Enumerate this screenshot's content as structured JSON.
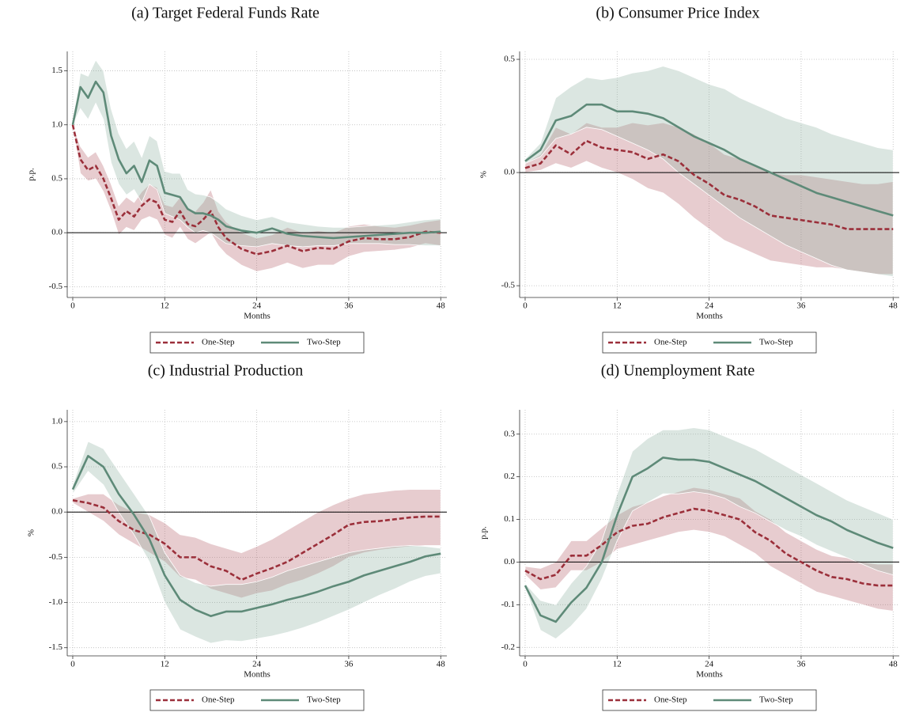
{
  "chart_data": [
    {
      "type": "line",
      "title": "(a) Target Federal Funds Rate",
      "xlabel": "Months",
      "ylabel": "p.p.",
      "x": [
        0,
        1,
        2,
        3,
        4,
        5,
        6,
        7,
        8,
        9,
        10,
        11,
        12,
        13,
        14,
        15,
        16,
        17,
        18,
        19,
        20,
        22,
        24,
        26,
        28,
        30,
        32,
        34,
        36,
        38,
        40,
        42,
        44,
        46,
        48
      ],
      "xlim": [
        -0.72,
        48.8
      ],
      "xticks": [
        0,
        12,
        24,
        36,
        48
      ],
      "ylim": [
        -0.6,
        1.68
      ],
      "yticks": [
        -0.5,
        {
          "value": 0,
          "label": "0.0"
        },
        0.5,
        {
          "value": 1,
          "label": "1.0"
        },
        1.5
      ],
      "grid": true,
      "hline": 0,
      "series": [
        {
          "name": "One-Step",
          "color": "#9b2f3a",
          "band_color": "#b5606b",
          "line_style": "dashed",
          "values": [
            1.0,
            0.68,
            0.58,
            0.62,
            0.5,
            0.32,
            0.12,
            0.2,
            0.15,
            0.25,
            0.31,
            0.28,
            0.12,
            0.1,
            0.2,
            0.08,
            0.06,
            0.12,
            0.2,
            0.05,
            -0.05,
            -0.15,
            -0.2,
            -0.17,
            -0.12,
            -0.17,
            -0.14,
            -0.15,
            -0.08,
            -0.05,
            -0.06,
            -0.06,
            -0.04,
            0.01,
            0.0
          ],
          "lower": [
            1.0,
            0.55,
            0.48,
            0.5,
            0.38,
            0.2,
            -0.02,
            0.05,
            0.02,
            0.12,
            0.15,
            0.12,
            -0.02,
            -0.05,
            0.05,
            -0.06,
            -0.1,
            -0.05,
            0.0,
            -0.12,
            -0.2,
            -0.3,
            -0.36,
            -0.33,
            -0.28,
            -0.33,
            -0.3,
            -0.3,
            -0.22,
            -0.18,
            -0.17,
            -0.16,
            -0.14,
            -0.1,
            -0.12
          ],
          "upper": [
            1.0,
            0.8,
            0.7,
            0.75,
            0.62,
            0.45,
            0.25,
            0.33,
            0.28,
            0.38,
            0.45,
            0.42,
            0.26,
            0.24,
            0.33,
            0.22,
            0.2,
            0.28,
            0.4,
            0.2,
            0.1,
            0.0,
            -0.05,
            -0.02,
            0.05,
            0.0,
            0.02,
            0.0,
            0.06,
            0.08,
            0.06,
            0.05,
            0.07,
            0.1,
            0.12
          ]
        },
        {
          "name": "Two-Step",
          "color": "#5e8a78",
          "band_color": "#8fb0a3",
          "line_style": "solid",
          "values": [
            1.0,
            1.35,
            1.25,
            1.4,
            1.3,
            0.9,
            0.68,
            0.55,
            0.62,
            0.47,
            0.67,
            0.62,
            0.37,
            0.35,
            0.33,
            0.22,
            0.18,
            0.18,
            0.16,
            0.12,
            0.06,
            0.02,
            0.0,
            0.04,
            -0.01,
            -0.03,
            -0.04,
            -0.05,
            -0.04,
            -0.03,
            -0.02,
            -0.01,
            0.0,
            0.0,
            0.01
          ],
          "lower": [
            1.0,
            1.15,
            1.05,
            1.2,
            1.05,
            0.65,
            0.45,
            0.35,
            0.4,
            0.28,
            0.45,
            0.4,
            0.18,
            0.15,
            0.12,
            0.05,
            0.0,
            0.02,
            0.0,
            -0.05,
            -0.1,
            -0.12,
            -0.13,
            -0.1,
            -0.12,
            -0.13,
            -0.12,
            -0.12,
            -0.1,
            -0.1,
            -0.1,
            -0.11,
            -0.11,
            -0.12,
            -0.12
          ],
          "upper": [
            1.0,
            1.48,
            1.45,
            1.6,
            1.5,
            1.15,
            0.92,
            0.78,
            0.85,
            0.7,
            0.9,
            0.85,
            0.57,
            0.55,
            0.55,
            0.4,
            0.36,
            0.35,
            0.33,
            0.28,
            0.22,
            0.16,
            0.12,
            0.15,
            0.1,
            0.08,
            0.06,
            0.05,
            0.05,
            0.06,
            0.07,
            0.08,
            0.1,
            0.12,
            0.13
          ]
        }
      ]
    },
    {
      "type": "line",
      "title": "(b) Consumer Price Index",
      "xlabel": "Months",
      "ylabel": "%",
      "x": [
        0,
        2,
        4,
        6,
        8,
        10,
        12,
        14,
        16,
        18,
        20,
        22,
        24,
        26,
        28,
        30,
        32,
        34,
        36,
        38,
        40,
        42,
        44,
        46,
        48
      ],
      "xlim": [
        -0.72,
        48.8
      ],
      "xticks": [
        0,
        12,
        24,
        36,
        48
      ],
      "ylim": [
        -0.552,
        0.535
      ],
      "yticks": [
        -0.5,
        {
          "value": 0,
          "label": "0.0"
        },
        0.5
      ],
      "grid": true,
      "hline": 0,
      "series": [
        {
          "name": "One-Step",
          "color": "#9b2f3a",
          "band_color": "#b5606b",
          "line_style": "dashed",
          "values": [
            0.02,
            0.04,
            0.12,
            0.08,
            0.14,
            0.11,
            0.1,
            0.09,
            0.06,
            0.08,
            0.05,
            -0.01,
            -0.05,
            -0.1,
            -0.12,
            -0.15,
            -0.19,
            -0.2,
            -0.21,
            -0.22,
            -0.23,
            -0.25,
            -0.25,
            -0.25,
            -0.25
          ],
          "lower": [
            0.0,
            0.01,
            0.04,
            0.02,
            0.05,
            0.02,
            0.0,
            -0.03,
            -0.07,
            -0.09,
            -0.14,
            -0.2,
            -0.25,
            -0.3,
            -0.33,
            -0.36,
            -0.39,
            -0.4,
            -0.41,
            -0.42,
            -0.42,
            -0.43,
            -0.44,
            -0.45,
            -0.45
          ],
          "upper": [
            0.04,
            0.08,
            0.2,
            0.17,
            0.22,
            0.2,
            0.2,
            0.22,
            0.21,
            0.22,
            0.2,
            0.17,
            0.13,
            0.08,
            0.06,
            0.03,
            0.0,
            -0.01,
            -0.01,
            -0.02,
            -0.03,
            -0.04,
            -0.05,
            -0.05,
            -0.04
          ]
        },
        {
          "name": "Two-Step",
          "color": "#5e8a78",
          "band_color": "#8fb0a3",
          "line_style": "solid",
          "values": [
            0.05,
            0.1,
            0.23,
            0.25,
            0.3,
            0.3,
            0.27,
            0.27,
            0.26,
            0.24,
            0.2,
            0.16,
            0.13,
            0.1,
            0.06,
            0.03,
            0.0,
            -0.03,
            -0.06,
            -0.09,
            -0.11,
            -0.13,
            -0.15,
            -0.17,
            -0.19
          ],
          "lower": [
            0.04,
            0.07,
            0.15,
            0.17,
            0.2,
            0.19,
            0.16,
            0.13,
            0.1,
            0.06,
            0.0,
            -0.05,
            -0.1,
            -0.15,
            -0.2,
            -0.24,
            -0.28,
            -0.32,
            -0.35,
            -0.38,
            -0.41,
            -0.43,
            -0.44,
            -0.45,
            -0.46
          ],
          "upper": [
            0.06,
            0.13,
            0.33,
            0.38,
            0.42,
            0.41,
            0.42,
            0.44,
            0.45,
            0.47,
            0.45,
            0.42,
            0.39,
            0.37,
            0.33,
            0.3,
            0.27,
            0.24,
            0.22,
            0.2,
            0.17,
            0.15,
            0.13,
            0.11,
            0.1
          ]
        }
      ]
    },
    {
      "type": "line",
      "title": "(c) Industrial Production",
      "xlabel": "Months",
      "ylabel": "%",
      "x": [
        0,
        2,
        4,
        6,
        8,
        10,
        12,
        14,
        16,
        18,
        20,
        22,
        24,
        26,
        28,
        30,
        32,
        34,
        36,
        38,
        40,
        42,
        44,
        46,
        48
      ],
      "xlim": [
        -0.72,
        48.8
      ],
      "xticks": [
        0,
        12,
        24,
        36,
        48
      ],
      "ylim": [
        -1.59,
        1.13
      ],
      "yticks": [
        -1.5,
        {
          "value": -1,
          "label": "-1.0"
        },
        -0.5,
        {
          "value": 0,
          "label": "0.0"
        },
        0.5,
        {
          "value": 1,
          "label": "1.0"
        }
      ],
      "grid": true,
      "hline": 0,
      "series": [
        {
          "name": "One-Step",
          "color": "#9b2f3a",
          "band_color": "#b5606b",
          "line_style": "dashed",
          "values": [
            0.13,
            0.1,
            0.05,
            -0.1,
            -0.2,
            -0.25,
            -0.35,
            -0.5,
            -0.5,
            -0.6,
            -0.65,
            -0.75,
            -0.68,
            -0.62,
            -0.55,
            -0.45,
            -0.35,
            -0.25,
            -0.14,
            -0.11,
            -0.1,
            -0.08,
            -0.06,
            -0.05,
            -0.05
          ],
          "lower": [
            0.1,
            0.0,
            -0.1,
            -0.25,
            -0.35,
            -0.45,
            -0.55,
            -0.72,
            -0.75,
            -0.85,
            -0.9,
            -0.95,
            -0.9,
            -0.87,
            -0.8,
            -0.75,
            -0.68,
            -0.6,
            -0.5,
            -0.45,
            -0.42,
            -0.4,
            -0.38,
            -0.37,
            -0.37
          ],
          "upper": [
            0.15,
            0.2,
            0.2,
            0.08,
            0.0,
            -0.03,
            -0.12,
            -0.25,
            -0.28,
            -0.35,
            -0.4,
            -0.45,
            -0.38,
            -0.3,
            -0.2,
            -0.1,
            0.0,
            0.08,
            0.15,
            0.2,
            0.22,
            0.24,
            0.25,
            0.25,
            0.25
          ]
        },
        {
          "name": "Two-Step",
          "color": "#5e8a78",
          "band_color": "#8fb0a3",
          "line_style": "solid",
          "values": [
            0.25,
            0.62,
            0.5,
            0.2,
            -0.03,
            -0.3,
            -0.7,
            -0.97,
            -1.08,
            -1.15,
            -1.1,
            -1.1,
            -1.06,
            -1.02,
            -0.97,
            -0.93,
            -0.88,
            -0.82,
            -0.77,
            -0.7,
            -0.65,
            -0.6,
            -0.55,
            -0.49,
            -0.46
          ],
          "lower": [
            0.2,
            0.45,
            0.3,
            0.0,
            -0.25,
            -0.55,
            -1.0,
            -1.3,
            -1.38,
            -1.45,
            -1.42,
            -1.43,
            -1.4,
            -1.37,
            -1.33,
            -1.28,
            -1.22,
            -1.15,
            -1.08,
            -1.0,
            -0.92,
            -0.85,
            -0.77,
            -0.71,
            -0.68
          ],
          "upper": [
            0.3,
            0.78,
            0.7,
            0.45,
            0.2,
            -0.05,
            -0.45,
            -0.7,
            -0.78,
            -0.82,
            -0.8,
            -0.8,
            -0.77,
            -0.72,
            -0.65,
            -0.6,
            -0.55,
            -0.5,
            -0.45,
            -0.42,
            -0.4,
            -0.38,
            -0.37,
            -0.38,
            -0.4
          ]
        }
      ]
    },
    {
      "type": "line",
      "title": "(d) Unemployment Rate",
      "xlabel": "Months",
      "ylabel": "p.p.",
      "x": [
        0,
        2,
        4,
        6,
        8,
        10,
        12,
        14,
        16,
        18,
        20,
        22,
        24,
        26,
        28,
        30,
        32,
        34,
        36,
        38,
        40,
        42,
        44,
        46,
        48
      ],
      "xlim": [
        -0.72,
        48.8
      ],
      "xticks": [
        0,
        12,
        24,
        36,
        48
      ],
      "ylim": [
        -0.22,
        0.357
      ],
      "yticks": [
        -0.2,
        -0.1,
        {
          "value": 0,
          "label": "0.0"
        },
        0.1,
        0.2,
        0.3
      ],
      "grid": true,
      "hline": 0,
      "series": [
        {
          "name": "One-Step",
          "color": "#9b2f3a",
          "band_color": "#b5606b",
          "line_style": "dashed",
          "values": [
            -0.02,
            -0.04,
            -0.03,
            0.015,
            0.015,
            0.04,
            0.07,
            0.085,
            0.09,
            0.105,
            0.115,
            0.125,
            0.12,
            0.11,
            0.1,
            0.07,
            0.05,
            0.02,
            0.0,
            -0.02,
            -0.035,
            -0.04,
            -0.05,
            -0.055,
            -0.055
          ],
          "lower": [
            -0.03,
            -0.065,
            -0.06,
            -0.02,
            -0.02,
            0.0,
            0.03,
            0.04,
            0.05,
            0.06,
            0.07,
            0.075,
            0.07,
            0.06,
            0.04,
            0.02,
            -0.01,
            -0.03,
            -0.05,
            -0.07,
            -0.08,
            -0.09,
            -0.1,
            -0.11,
            -0.115
          ],
          "upper": [
            -0.01,
            -0.015,
            0.0,
            0.05,
            0.05,
            0.08,
            0.11,
            0.13,
            0.14,
            0.155,
            0.165,
            0.175,
            0.17,
            0.16,
            0.15,
            0.12,
            0.1,
            0.07,
            0.05,
            0.03,
            0.015,
            0.01,
            0.0,
            -0.005,
            -0.005
          ]
        },
        {
          "name": "Two-Step",
          "color": "#5e8a78",
          "band_color": "#8fb0a3",
          "line_style": "solid",
          "values": [
            -0.055,
            -0.125,
            -0.14,
            -0.095,
            -0.06,
            0.0,
            0.11,
            0.2,
            0.22,
            0.245,
            0.24,
            0.24,
            0.235,
            0.22,
            0.205,
            0.19,
            0.17,
            0.15,
            0.13,
            0.11,
            0.095,
            0.075,
            0.06,
            0.045,
            0.033
          ],
          "lower": [
            -0.06,
            -0.16,
            -0.18,
            -0.15,
            -0.11,
            -0.04,
            0.05,
            0.12,
            0.14,
            0.16,
            0.16,
            0.165,
            0.16,
            0.15,
            0.13,
            0.115,
            0.095,
            0.075,
            0.06,
            0.04,
            0.025,
            0.01,
            -0.005,
            -0.02,
            -0.03
          ],
          "upper": [
            -0.05,
            -0.09,
            -0.1,
            -0.05,
            -0.01,
            0.05,
            0.16,
            0.26,
            0.29,
            0.31,
            0.31,
            0.315,
            0.31,
            0.295,
            0.28,
            0.265,
            0.245,
            0.225,
            0.205,
            0.185,
            0.165,
            0.145,
            0.13,
            0.115,
            0.1
          ]
        }
      ]
    }
  ]
}
